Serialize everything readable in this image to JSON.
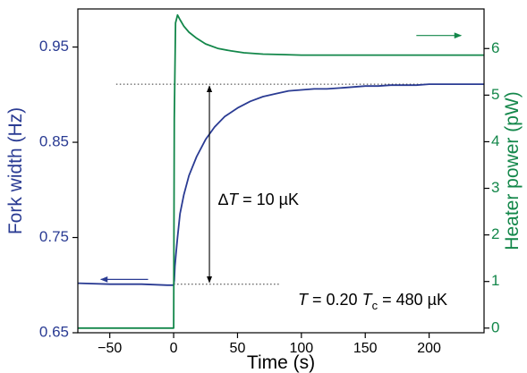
{
  "chart_data": {
    "type": "line",
    "xlabel": "Time (s)",
    "ylabel_left": "Fork width (Hz)",
    "ylabel_right": "Heater power (pW)",
    "xlim": [
      -75,
      243
    ],
    "ylim_left": [
      0.65,
      0.99
    ],
    "ylim_right": [
      -0.1,
      6.85
    ],
    "x_ticks": [
      -50,
      0,
      50,
      100,
      150,
      200
    ],
    "x_tick_labels": [
      "−50",
      "0",
      "50",
      "100",
      "150",
      "200"
    ],
    "y_left_ticks": [
      0.65,
      0.75,
      0.85,
      0.95
    ],
    "y_left_tick_labels": [
      "0.65",
      "0.75",
      "0.85",
      "0.95"
    ],
    "y_right_ticks": [
      0,
      1,
      2,
      3,
      4,
      5,
      6
    ],
    "y_right_tick_labels": [
      "0",
      "1",
      "2",
      "3",
      "4",
      "5",
      "6"
    ],
    "colors": {
      "fork_width": "#2a3b93",
      "heater_power": "#13874a",
      "axis": "#000000"
    },
    "series": [
      {
        "axis": "left",
        "color": "#2a3b93",
        "x": [
          -75,
          -50,
          -25,
          -5,
          0,
          0.5,
          1,
          2,
          3,
          5,
          8,
          12,
          18,
          25,
          32,
          40,
          50,
          60,
          70,
          80,
          90,
          100,
          110,
          120,
          130,
          140,
          150,
          160,
          170,
          180,
          190,
          200,
          210,
          220,
          230,
          243
        ],
        "y": [
          0.702,
          0.701,
          0.701,
          0.7,
          0.7,
          0.705,
          0.72,
          0.735,
          0.75,
          0.775,
          0.795,
          0.815,
          0.835,
          0.853,
          0.866,
          0.877,
          0.886,
          0.893,
          0.898,
          0.901,
          0.904,
          0.905,
          0.906,
          0.906,
          0.907,
          0.908,
          0.909,
          0.909,
          0.91,
          0.91,
          0.91,
          0.911,
          0.911,
          0.911,
          0.911,
          0.911
        ]
      },
      {
        "axis": "right",
        "color": "#13874a",
        "x": [
          -75,
          -10,
          0,
          0.5,
          1.5,
          3,
          5,
          8,
          12,
          18,
          25,
          35,
          45,
          55,
          70,
          85,
          100,
          130,
          160,
          200,
          243
        ],
        "y": [
          0,
          0,
          0,
          4.5,
          6.55,
          6.72,
          6.62,
          6.48,
          6.35,
          6.22,
          6.1,
          6.0,
          5.95,
          5.91,
          5.88,
          5.87,
          5.86,
          5.86,
          5.86,
          5.86,
          5.86
        ]
      }
    ],
    "reference_lines": [
      {
        "y": 0.911,
        "x_from": -45,
        "x_to": 243
      },
      {
        "y": 0.701,
        "x_from": 0,
        "x_to": 83
      }
    ],
    "delta_arrow": {
      "x": 28,
      "y_from": 0.701,
      "y_to": 0.911
    },
    "annotations": {
      "delta_symbol": "∆",
      "delta_var": "T",
      "delta_value": " = 10 µK",
      "cond_T": "T",
      "cond_mid": " = 0.20 ",
      "cond_Tc": "T",
      "cond_sub": "c",
      "cond_value": " = 480 µK"
    }
  }
}
